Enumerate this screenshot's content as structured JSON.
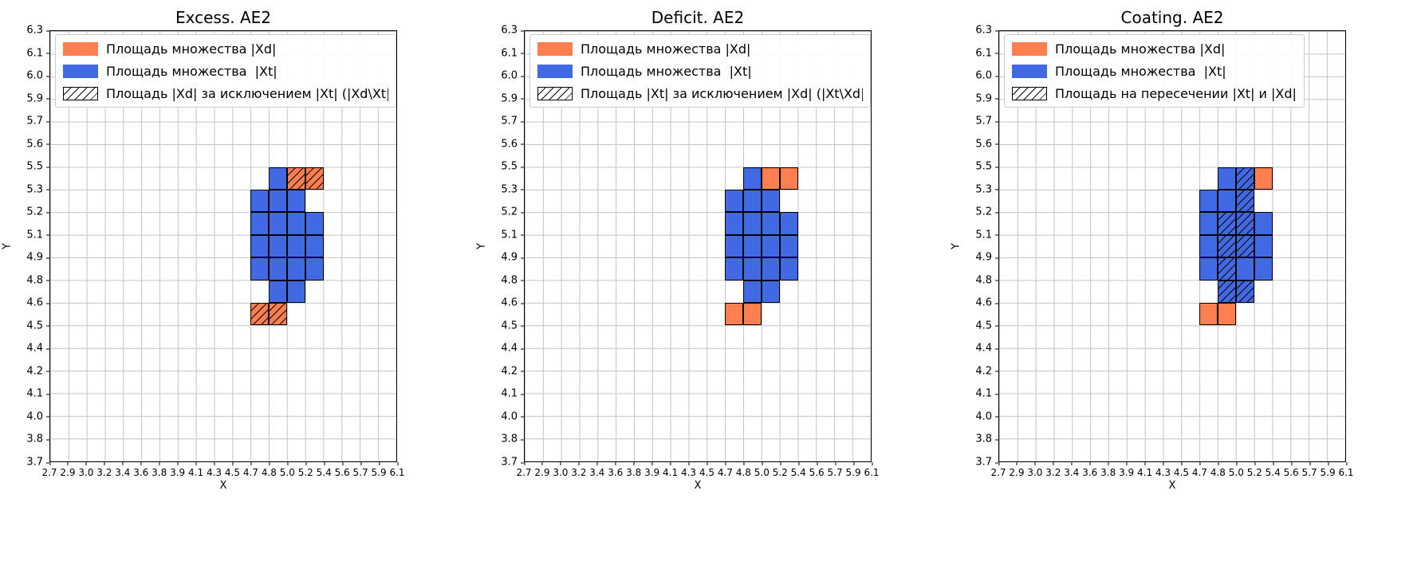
{
  "colors": {
    "orange": "#FF7F50",
    "blue": "#4169E1",
    "grid": "#c4c4c4",
    "spine": "#000000"
  },
  "figure": {
    "x_label": "X",
    "y_label": "Y",
    "x_ticks": [
      "2.7",
      "2.9",
      "3.0",
      "3.2",
      "3.4",
      "3.6",
      "3.8",
      "3.9",
      "4.1",
      "4.3",
      "4.5",
      "4.7",
      "4.8",
      "5.0",
      "5.2",
      "5.4",
      "5.6",
      "5.7",
      "5.9",
      "6.1"
    ],
    "y_ticks_bottom_to_top": [
      "3.7",
      "3.8",
      "4.0",
      "4.1",
      "4.2",
      "4.4",
      "4.5",
      "4.6",
      "4.8",
      "4.9",
      "5.1",
      "5.2",
      "5.3",
      "5.5",
      "5.6",
      "5.7",
      "5.9",
      "6.0",
      "6.1",
      "6.3"
    ]
  },
  "chart_data": [
    {
      "type": "heatmap",
      "title": "Excess. AE2",
      "xlabel": "X",
      "ylabel": "Y",
      "x_range": [
        2.7,
        6.1
      ],
      "y_range": [
        3.7,
        6.3
      ],
      "grid": true,
      "legend_position": "upper left",
      "legend": [
        {
          "swatch": "orange",
          "label": "Площадь множества |Xd|"
        },
        {
          "swatch": "blue",
          "label": "Площадь множества  |Xt|"
        },
        {
          "swatch": "hatch",
          "label": "Площадь |Xd| за исключением |Xt| (|Xd\\Xt|)"
        }
      ],
      "cell_note": "x,y are indices of cell between tick x..x+1 and tick y..y+1 (y counted from bottom)",
      "cells": [
        {
          "x": 12,
          "y": 12,
          "fill": "blue",
          "hatch": false
        },
        {
          "x": 11,
          "y": 11,
          "fill": "blue",
          "hatch": false
        },
        {
          "x": 12,
          "y": 11,
          "fill": "blue",
          "hatch": false
        },
        {
          "x": 13,
          "y": 11,
          "fill": "blue",
          "hatch": false
        },
        {
          "x": 11,
          "y": 10,
          "fill": "blue",
          "hatch": false
        },
        {
          "x": 12,
          "y": 10,
          "fill": "blue",
          "hatch": false
        },
        {
          "x": 13,
          "y": 10,
          "fill": "blue",
          "hatch": false
        },
        {
          "x": 14,
          "y": 10,
          "fill": "blue",
          "hatch": false
        },
        {
          "x": 11,
          "y": 9,
          "fill": "blue",
          "hatch": false
        },
        {
          "x": 12,
          "y": 9,
          "fill": "blue",
          "hatch": false
        },
        {
          "x": 13,
          "y": 9,
          "fill": "blue",
          "hatch": false
        },
        {
          "x": 14,
          "y": 9,
          "fill": "blue",
          "hatch": false
        },
        {
          "x": 11,
          "y": 8,
          "fill": "blue",
          "hatch": false
        },
        {
          "x": 12,
          "y": 8,
          "fill": "blue",
          "hatch": false
        },
        {
          "x": 13,
          "y": 8,
          "fill": "blue",
          "hatch": false
        },
        {
          "x": 14,
          "y": 8,
          "fill": "blue",
          "hatch": false
        },
        {
          "x": 12,
          "y": 7,
          "fill": "blue",
          "hatch": false
        },
        {
          "x": 13,
          "y": 7,
          "fill": "blue",
          "hatch": false
        },
        {
          "x": 13,
          "y": 12,
          "fill": "orange",
          "hatch": true
        },
        {
          "x": 14,
          "y": 12,
          "fill": "orange",
          "hatch": true
        },
        {
          "x": 11,
          "y": 6,
          "fill": "orange",
          "hatch": true
        },
        {
          "x": 12,
          "y": 6,
          "fill": "orange",
          "hatch": true
        }
      ]
    },
    {
      "type": "heatmap",
      "title": "Deficit. AE2",
      "xlabel": "X",
      "ylabel": "Y",
      "x_range": [
        2.7,
        6.1
      ],
      "y_range": [
        3.7,
        6.3
      ],
      "grid": true,
      "legend_position": "upper left",
      "legend": [
        {
          "swatch": "orange",
          "label": "Площадь множества |Xd|"
        },
        {
          "swatch": "blue",
          "label": "Площадь множества  |Xt|"
        },
        {
          "swatch": "hatch",
          "label": "Площадь |Xt| за исключением |Xd| (|Xt\\Xd|)"
        }
      ],
      "cell_note": "x,y are indices of cell between tick x..x+1 and tick y..y+1 (y counted from bottom)",
      "cells": [
        {
          "x": 12,
          "y": 12,
          "fill": "blue",
          "hatch": false
        },
        {
          "x": 11,
          "y": 11,
          "fill": "blue",
          "hatch": false
        },
        {
          "x": 12,
          "y": 11,
          "fill": "blue",
          "hatch": false
        },
        {
          "x": 13,
          "y": 11,
          "fill": "blue",
          "hatch": false
        },
        {
          "x": 11,
          "y": 10,
          "fill": "blue",
          "hatch": false
        },
        {
          "x": 12,
          "y": 10,
          "fill": "blue",
          "hatch": false
        },
        {
          "x": 13,
          "y": 10,
          "fill": "blue",
          "hatch": false
        },
        {
          "x": 14,
          "y": 10,
          "fill": "blue",
          "hatch": false
        },
        {
          "x": 11,
          "y": 9,
          "fill": "blue",
          "hatch": false
        },
        {
          "x": 12,
          "y": 9,
          "fill": "blue",
          "hatch": false
        },
        {
          "x": 13,
          "y": 9,
          "fill": "blue",
          "hatch": false
        },
        {
          "x": 14,
          "y": 9,
          "fill": "blue",
          "hatch": false
        },
        {
          "x": 11,
          "y": 8,
          "fill": "blue",
          "hatch": false
        },
        {
          "x": 12,
          "y": 8,
          "fill": "blue",
          "hatch": false
        },
        {
          "x": 13,
          "y": 8,
          "fill": "blue",
          "hatch": false
        },
        {
          "x": 14,
          "y": 8,
          "fill": "blue",
          "hatch": false
        },
        {
          "x": 12,
          "y": 7,
          "fill": "blue",
          "hatch": false
        },
        {
          "x": 13,
          "y": 7,
          "fill": "blue",
          "hatch": false
        },
        {
          "x": 13,
          "y": 12,
          "fill": "orange",
          "hatch": false
        },
        {
          "x": 14,
          "y": 12,
          "fill": "orange",
          "hatch": false
        },
        {
          "x": 11,
          "y": 6,
          "fill": "orange",
          "hatch": false
        },
        {
          "x": 12,
          "y": 6,
          "fill": "orange",
          "hatch": false
        }
      ]
    },
    {
      "type": "heatmap",
      "title": "Coating. AE2",
      "xlabel": "X",
      "ylabel": "Y",
      "x_range": [
        2.7,
        6.1
      ],
      "y_range": [
        3.7,
        6.3
      ],
      "grid": true,
      "legend_position": "upper left",
      "legend": [
        {
          "swatch": "orange",
          "label": "Площадь множества |Xd|"
        },
        {
          "swatch": "blue",
          "label": "Площадь множества  |Xt|"
        },
        {
          "swatch": "hatch",
          "label": "Площадь на пересечении |Xt| и |Xd|"
        }
      ],
      "cell_note": "x,y are indices of cell between tick x..x+1 and tick y..y+1 (y counted from bottom)",
      "cells": [
        {
          "x": 12,
          "y": 12,
          "fill": "blue",
          "hatch": false
        },
        {
          "x": 11,
          "y": 11,
          "fill": "blue",
          "hatch": false
        },
        {
          "x": 12,
          "y": 11,
          "fill": "blue",
          "hatch": false
        },
        {
          "x": 11,
          "y": 10,
          "fill": "blue",
          "hatch": false
        },
        {
          "x": 14,
          "y": 10,
          "fill": "blue",
          "hatch": false
        },
        {
          "x": 11,
          "y": 9,
          "fill": "blue",
          "hatch": false
        },
        {
          "x": 14,
          "y": 9,
          "fill": "blue",
          "hatch": false
        },
        {
          "x": 11,
          "y": 8,
          "fill": "blue",
          "hatch": false
        },
        {
          "x": 13,
          "y": 8,
          "fill": "blue",
          "hatch": false
        },
        {
          "x": 14,
          "y": 8,
          "fill": "blue",
          "hatch": false
        },
        {
          "x": 13,
          "y": 12,
          "fill": "blue",
          "hatch": true
        },
        {
          "x": 13,
          "y": 11,
          "fill": "blue",
          "hatch": true
        },
        {
          "x": 12,
          "y": 10,
          "fill": "blue",
          "hatch": true
        },
        {
          "x": 13,
          "y": 10,
          "fill": "blue",
          "hatch": true
        },
        {
          "x": 12,
          "y": 9,
          "fill": "blue",
          "hatch": true
        },
        {
          "x": 13,
          "y": 9,
          "fill": "blue",
          "hatch": true
        },
        {
          "x": 12,
          "y": 8,
          "fill": "blue",
          "hatch": true
        },
        {
          "x": 12,
          "y": 7,
          "fill": "blue",
          "hatch": true
        },
        {
          "x": 13,
          "y": 7,
          "fill": "blue",
          "hatch": true
        },
        {
          "x": 14,
          "y": 12,
          "fill": "orange",
          "hatch": false
        },
        {
          "x": 11,
          "y": 6,
          "fill": "orange",
          "hatch": false
        },
        {
          "x": 12,
          "y": 6,
          "fill": "orange",
          "hatch": false
        }
      ]
    }
  ]
}
